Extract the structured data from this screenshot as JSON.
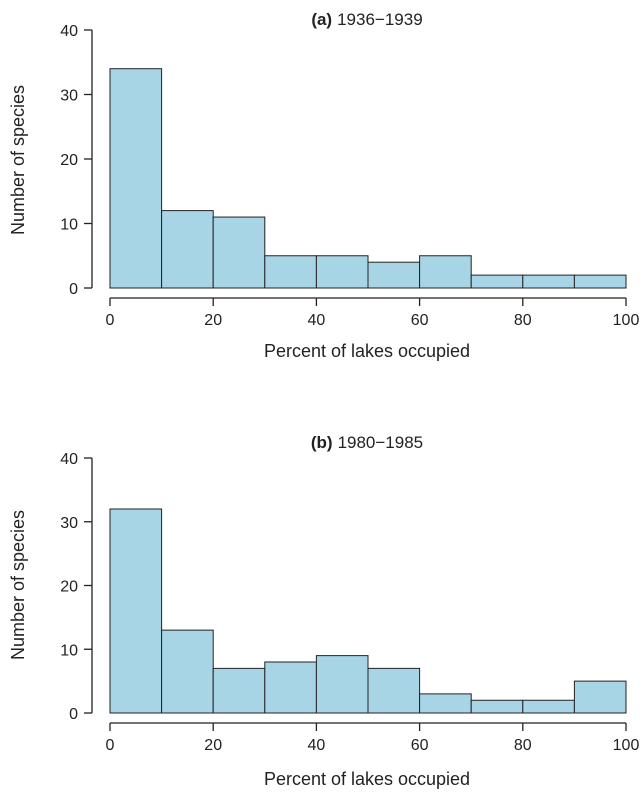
{
  "colors": {
    "bar_fill": "#a8d5e5",
    "bar_stroke": "#222222",
    "axis": "#222222"
  },
  "chart_data": [
    {
      "type": "bar",
      "title_tag": "(a)",
      "title_text": "1936−1939",
      "xlabel": "Percent of lakes occupied",
      "ylabel": "Number of species",
      "bin_edges": [
        0,
        10,
        20,
        30,
        40,
        50,
        60,
        70,
        80,
        90,
        100
      ],
      "values": [
        34,
        12,
        11,
        5,
        5,
        4,
        5,
        2,
        2,
        2
      ],
      "xlim": [
        0,
        100
      ],
      "ylim": [
        0,
        40
      ],
      "x_ticks": [
        "0",
        "20",
        "40",
        "60",
        "80",
        "100"
      ],
      "y_ticks": [
        "0",
        "10",
        "20",
        "30",
        "40"
      ],
      "grid": false
    },
    {
      "type": "bar",
      "title_tag": "(b)",
      "title_text": "1980−1985",
      "xlabel": "Percent of lakes occupied",
      "ylabel": "Number of species",
      "bin_edges": [
        0,
        10,
        20,
        30,
        40,
        50,
        60,
        70,
        80,
        90,
        100
      ],
      "values": [
        32,
        13,
        7,
        8,
        9,
        7,
        3,
        2,
        2,
        5
      ],
      "xlim": [
        0,
        100
      ],
      "ylim": [
        0,
        40
      ],
      "x_ticks": [
        "0",
        "20",
        "40",
        "60",
        "80",
        "100"
      ],
      "y_ticks": [
        "0",
        "10",
        "20",
        "30",
        "40"
      ],
      "grid": false
    }
  ]
}
